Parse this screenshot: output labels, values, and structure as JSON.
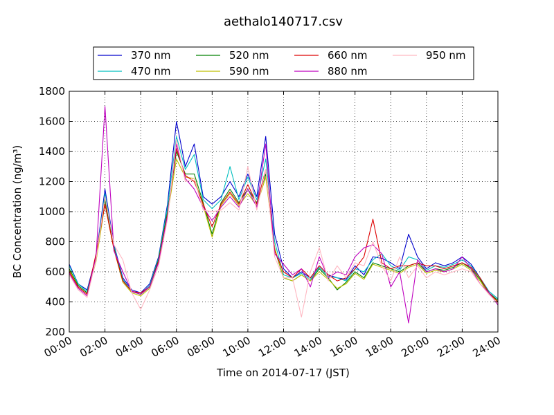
{
  "chart_data": {
    "type": "line",
    "title": "aethalo140717.csv",
    "xlabel": "Time on 2014-07-17 (JST)",
    "ylabel": "BC Concentration (ng/m³)",
    "xlim": [
      "00:00",
      "24:00"
    ],
    "ylim": [
      200,
      1800
    ],
    "x_ticks": [
      "00:00",
      "02:00",
      "04:00",
      "06:00",
      "08:00",
      "10:00",
      "12:00",
      "14:00",
      "16:00",
      "18:00",
      "20:00",
      "22:00",
      "24:00"
    ],
    "y_ticks": [
      200,
      400,
      600,
      800,
      1000,
      1200,
      1400,
      1600,
      1800
    ],
    "grid": true,
    "legend_position": "top",
    "x": [
      "00:00",
      "00:30",
      "01:00",
      "01:30",
      "02:00",
      "02:30",
      "03:00",
      "03:30",
      "04:00",
      "04:30",
      "05:00",
      "05:30",
      "06:00",
      "06:30",
      "07:00",
      "07:30",
      "08:00",
      "08:30",
      "09:00",
      "09:30",
      "10:00",
      "10:30",
      "11:00",
      "11:30",
      "12:00",
      "12:30",
      "13:00",
      "13:30",
      "14:00",
      "14:30",
      "15:00",
      "15:30",
      "16:00",
      "16:30",
      "17:00",
      "17:30",
      "18:00",
      "18:30",
      "19:00",
      "19:30",
      "20:00",
      "20:30",
      "21:00",
      "21:30",
      "22:00",
      "22:30",
      "23:00",
      "23:30",
      "24:00"
    ],
    "series": [
      {
        "name": "370 nm",
        "color": "#0000cc",
        "values": [
          650,
          520,
          480,
          700,
          1150,
          780,
          560,
          480,
          460,
          520,
          700,
          1050,
          1600,
          1300,
          1450,
          1100,
          1050,
          1100,
          1200,
          1100,
          1250,
          1100,
          1500,
          850,
          620,
          560,
          600,
          560,
          640,
          580,
          560,
          550,
          640,
          580,
          700,
          690,
          660,
          620,
          850,
          700,
          620,
          660,
          640,
          660,
          700,
          650,
          560,
          470,
          420
        ]
      },
      {
        "name": "470 nm",
        "color": "#00bfbf",
        "values": [
          640,
          520,
          470,
          690,
          1120,
          770,
          550,
          470,
          450,
          510,
          690,
          1030,
          1500,
          1280,
          1380,
          1080,
          1020,
          1080,
          1300,
          1080,
          1230,
          1080,
          1350,
          800,
          580,
          560,
          590,
          550,
          630,
          570,
          560,
          540,
          620,
          600,
          680,
          720,
          640,
          610,
          700,
          680,
          610,
          640,
          630,
          650,
          680,
          640,
          560,
          470,
          420
        ]
      },
      {
        "name": "520 nm",
        "color": "#008000",
        "values": [
          620,
          510,
          460,
          680,
          1080,
          760,
          540,
          470,
          450,
          500,
          680,
          1000,
          1400,
          1250,
          1250,
          1060,
          850,
          1060,
          1150,
          1060,
          1150,
          1060,
          1250,
          750,
          560,
          540,
          580,
          540,
          620,
          560,
          480,
          530,
          600,
          560,
          660,
          640,
          620,
          600,
          640,
          660,
          600,
          620,
          610,
          630,
          660,
          620,
          550,
          460,
          410
        ]
      },
      {
        "name": "590 nm",
        "color": "#bfbf00",
        "values": [
          610,
          500,
          450,
          670,
          1050,
          750,
          530,
          460,
          440,
          490,
          670,
          980,
          1350,
          1230,
          1220,
          1040,
          830,
          1040,
          1120,
          1040,
          1120,
          1040,
          1230,
          760,
          560,
          540,
          580,
          540,
          600,
          550,
          490,
          520,
          590,
          550,
          650,
          630,
          610,
          590,
          630,
          650,
          590,
          610,
          600,
          620,
          650,
          610,
          540,
          450,
          400
        ]
      },
      {
        "name": "660 nm",
        "color": "#dd0000",
        "values": [
          600,
          500,
          450,
          720,
          1050,
          750,
          540,
          470,
          460,
          500,
          670,
          980,
          1420,
          1240,
          1200,
          1050,
          900,
          1050,
          1130,
          1050,
          1180,
          1050,
          1280,
          740,
          600,
          560,
          620,
          560,
          640,
          580,
          540,
          560,
          620,
          700,
          950,
          660,
          620,
          640,
          640,
          660,
          640,
          640,
          620,
          640,
          660,
          630,
          560,
          460,
          400
        ]
      },
      {
        "name": "880 nm",
        "color": "#bf00bf",
        "values": [
          590,
          490,
          440,
          700,
          1700,
          740,
          600,
          470,
          450,
          500,
          660,
          970,
          1450,
          1220,
          1150,
          1030,
          940,
          1030,
          1100,
          1030,
          1150,
          1030,
          1450,
          720,
          650,
          580,
          620,
          500,
          700,
          560,
          600,
          580,
          700,
          760,
          780,
          720,
          500,
          600,
          260,
          680,
          600,
          620,
          600,
          620,
          700,
          620,
          520,
          460,
          380
        ]
      },
      {
        "name": "950 nm",
        "color": "#ffb6c1",
        "values": [
          580,
          480,
          430,
          680,
          1100,
          780,
          680,
          460,
          350,
          480,
          640,
          950,
          1480,
          1200,
          1220,
          1010,
          1000,
          1010,
          1060,
          1010,
          1300,
          1010,
          1280,
          700,
          560,
          560,
          300,
          600,
          760,
          540,
          640,
          560,
          660,
          640,
          800,
          640,
          540,
          700,
          560,
          640,
          560,
          600,
          580,
          600,
          620,
          600,
          520,
          450,
          390
        ]
      }
    ]
  }
}
